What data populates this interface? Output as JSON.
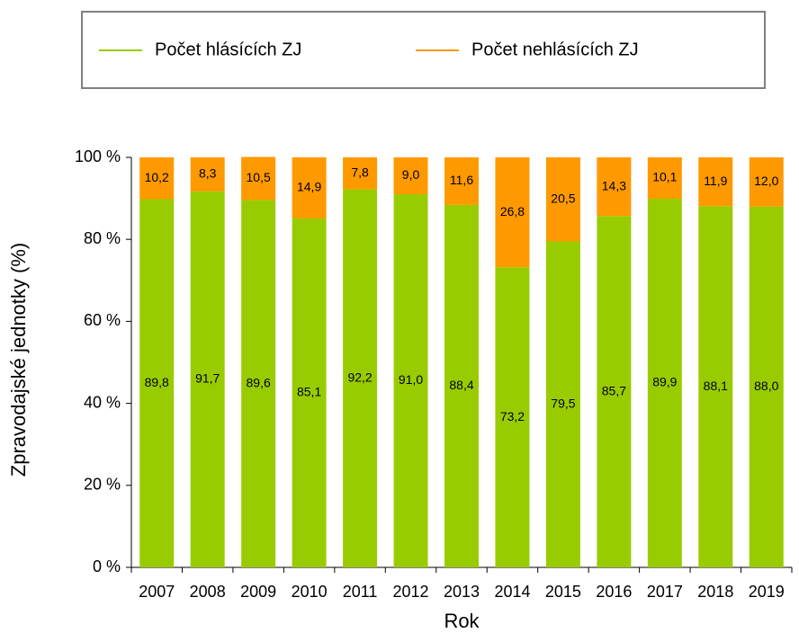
{
  "chart_data": {
    "type": "stacked_bar",
    "x_label": "Rok",
    "y_label": "Zpravodajské jednotky (%)",
    "categories": [
      "2007",
      "2008",
      "2009",
      "2010",
      "2011",
      "2012",
      "2013",
      "2014",
      "2015",
      "2016",
      "2017",
      "2018",
      "2019"
    ],
    "series": [
      {
        "name": "Počet hlásících ZJ",
        "color": "#99cc00",
        "values": [
          89.8,
          91.7,
          89.6,
          85.1,
          92.2,
          91.0,
          88.4,
          73.2,
          79.5,
          85.7,
          89.9,
          88.1,
          88.0
        ],
        "value_labels": [
          "89,8",
          "91,7",
          "89,6",
          "85,1",
          "92,2",
          "91,0",
          "88,4",
          "73,2",
          "79,5",
          "85,7",
          "89,9",
          "88,1",
          "88,0"
        ]
      },
      {
        "name": "Počet nehlásících ZJ",
        "color": "#ff9900",
        "values": [
          10.2,
          8.3,
          10.5,
          14.9,
          7.8,
          9.0,
          11.6,
          26.8,
          20.5,
          14.3,
          10.1,
          11.9,
          12.0
        ],
        "value_labels": [
          "10,2",
          "8,3",
          "10,5",
          "14,9",
          "7,8",
          "9,0",
          "11,6",
          "26,8",
          "20,5",
          "14,3",
          "10,1",
          "11,9",
          "12,0"
        ]
      }
    ],
    "ylim": [
      0,
      100
    ],
    "yticks": [
      {
        "value": 0,
        "label": "0 %"
      },
      {
        "value": 20,
        "label": "20 %"
      },
      {
        "value": 40,
        "label": "40 %"
      },
      {
        "value": 60,
        "label": "60 %"
      },
      {
        "value": 80,
        "label": "80 %"
      },
      {
        "value": 100,
        "label": "100 %"
      }
    ],
    "grid": false,
    "legend": "top"
  }
}
